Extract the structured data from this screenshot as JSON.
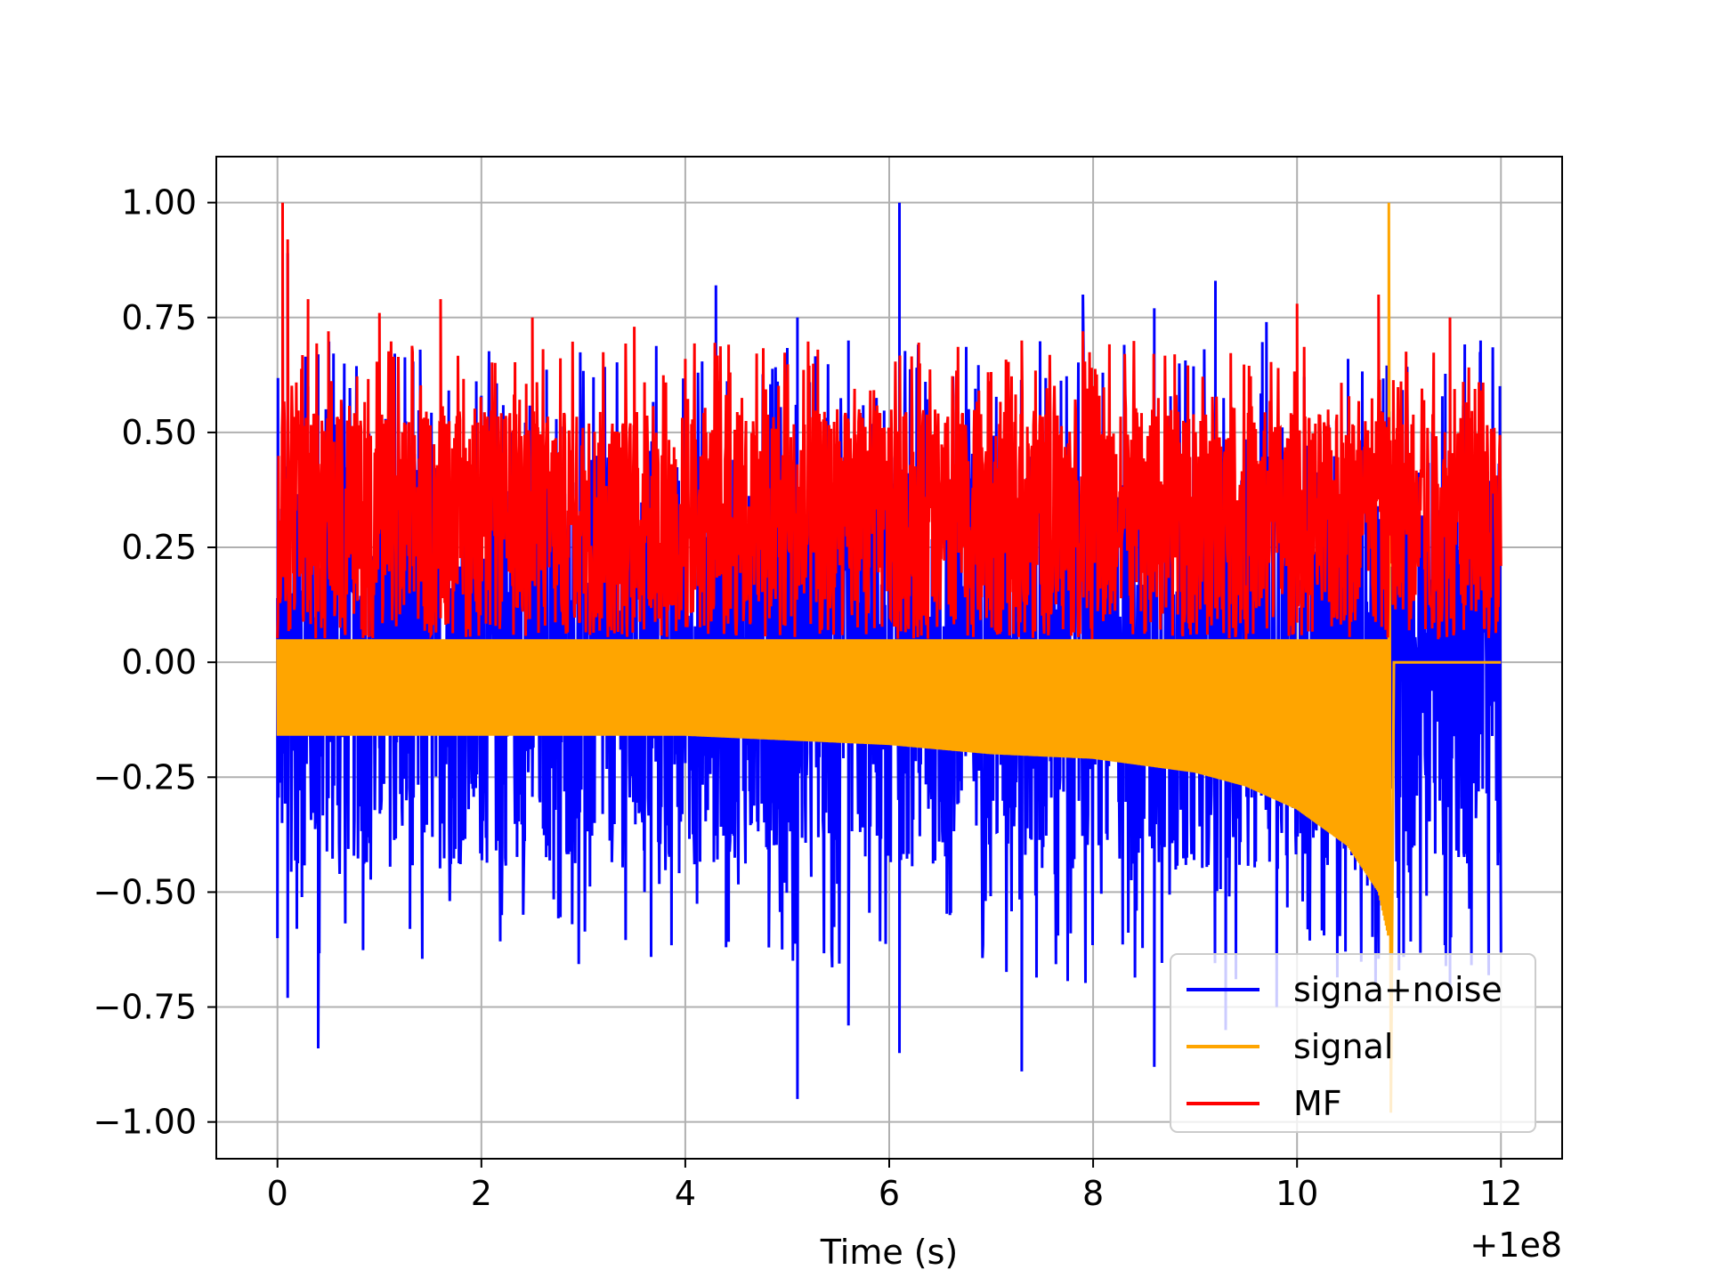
{
  "chart_data": {
    "type": "line",
    "title": "",
    "xlabel": "Time (s)",
    "ylabel": "",
    "x_offset_label": "+1e8",
    "xlim": [
      -0.6,
      12.6
    ],
    "ylim": [
      -1.08,
      1.1
    ],
    "x_ticks": [
      0,
      2,
      4,
      6,
      8,
      10,
      12
    ],
    "x_tick_labels": [
      "0",
      "2",
      "4",
      "6",
      "8",
      "10",
      "12"
    ],
    "y_ticks": [
      1.0,
      0.75,
      0.5,
      0.25,
      0.0,
      -0.25,
      -0.5,
      -0.75,
      -1.0
    ],
    "y_tick_labels": [
      "1.00",
      "0.75",
      "0.50",
      "0.25",
      "0.00",
      "−0.25",
      "−0.50",
      "−0.75",
      "−1.00"
    ],
    "grid": true,
    "legend_position": "lower-right",
    "series": [
      {
        "name": "signa+noise",
        "color": "#0000ff",
        "x_range": [
          0,
          12
        ],
        "values": "dense noisy oscillation, peaks mostly 0.3 to 0.6 (max 1.00 near x=6.1), troughs mostly -0.3 to -0.6 (min -0.95 near x=5.1)",
        "peaks": [
          [
            0.05,
            0.85
          ],
          [
            0.1,
            0.89
          ],
          [
            0.3,
            0.6
          ],
          [
            0.4,
            0.67
          ],
          [
            1.0,
            0.55
          ],
          [
            1.4,
            0.68
          ],
          [
            2.0,
            0.58
          ],
          [
            3.1,
            0.62
          ],
          [
            4.3,
            0.82
          ],
          [
            5.1,
            0.75
          ],
          [
            5.6,
            0.7
          ],
          [
            6.1,
            1.0
          ],
          [
            7.9,
            0.8
          ],
          [
            8.6,
            0.77
          ],
          [
            9.2,
            0.83
          ],
          [
            9.7,
            0.74
          ],
          [
            10.5,
            0.66
          ],
          [
            11.8,
            0.7
          ]
        ],
        "troughs": [
          [
            0.0,
            -0.6
          ],
          [
            0.1,
            -0.73
          ],
          [
            0.4,
            -0.84
          ],
          [
            1.3,
            -0.58
          ],
          [
            2.2,
            -0.55
          ],
          [
            3.6,
            -0.5
          ],
          [
            4.4,
            -0.62
          ],
          [
            5.1,
            -0.95
          ],
          [
            5.6,
            -0.79
          ],
          [
            6.1,
            -0.85
          ],
          [
            7.3,
            -0.89
          ],
          [
            8.6,
            -0.88
          ],
          [
            9.3,
            -0.8
          ],
          [
            9.8,
            -0.75
          ],
          [
            11.0,
            -0.67
          ],
          [
            11.5,
            -0.72
          ]
        ]
      },
      {
        "name": "signal",
        "color": "#ffa500",
        "x_range": [
          0,
          12
        ],
        "values": "chirp oscillation from x=0 to x~10.9 with upper envelope ~0.05 and lower envelope decreasing from -0.16 to about -0.5 near x=10.8; spikes to 1.00 and -0.98 at x~10.9; flat 0.00 from 10.95 to 12",
        "envelope_lower": [
          [
            0,
            -0.16
          ],
          [
            2,
            -0.16
          ],
          [
            4,
            -0.16
          ],
          [
            6,
            -0.18
          ],
          [
            7,
            -0.2
          ],
          [
            8,
            -0.21
          ],
          [
            9,
            -0.24
          ],
          [
            9.5,
            -0.27
          ],
          [
            10,
            -0.32
          ],
          [
            10.5,
            -0.4
          ],
          [
            10.8,
            -0.5
          ],
          [
            10.9,
            -0.6
          ]
        ],
        "spike": [
          [
            10.9,
            1.0
          ],
          [
            10.92,
            -0.98
          ]
        ],
        "flat_after": 10.95
      },
      {
        "name": "MF",
        "color": "#ff0000",
        "x_range": [
          0,
          12
        ],
        "values": "matched-filter output, non-negative, dense band roughly 0.05 to 0.55 with peaks up to 1.00 at x~0.05",
        "peaks": [
          [
            0.05,
            1.0
          ],
          [
            0.1,
            0.92
          ],
          [
            0.3,
            0.79
          ],
          [
            0.5,
            0.72
          ],
          [
            1.0,
            0.76
          ],
          [
            1.6,
            0.79
          ],
          [
            2.5,
            0.75
          ],
          [
            3.5,
            0.73
          ],
          [
            4.0,
            0.66
          ],
          [
            5.3,
            0.68
          ],
          [
            6.3,
            0.65
          ],
          [
            7.3,
            0.7
          ],
          [
            7.9,
            0.72
          ],
          [
            8.8,
            0.67
          ],
          [
            10.0,
            0.78
          ],
          [
            10.8,
            0.8
          ],
          [
            11.5,
            0.75
          ]
        ]
      }
    ]
  }
}
